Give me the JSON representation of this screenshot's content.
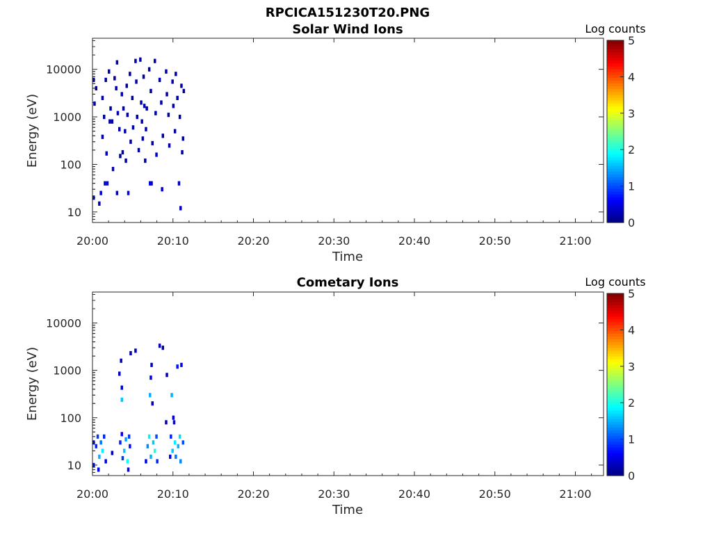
{
  "figure": {
    "title": "RPCICA151230T20.PNG"
  },
  "colormap": [
    "#00007f",
    "#0000ff",
    "#007fff",
    "#00ffff",
    "#7fff7f",
    "#ffff00",
    "#ff7f00",
    "#ff0000",
    "#7f0000"
  ],
  "chart_data": [
    {
      "type": "heatmap",
      "title": "Solar Wind Ions",
      "xlabel": "Time",
      "ylabel": "Energy (eV)",
      "x_ticks": [
        "20:00",
        "20:10",
        "20:20",
        "20:30",
        "20:40",
        "20:50",
        "21:00"
      ],
      "x_range_minutes": [
        0,
        63.5
      ],
      "y_ticks": [
        "10",
        "100",
        "1000",
        "10000"
      ],
      "y_scale": "log",
      "y_range": [
        6,
        45000
      ],
      "colorbar": {
        "label": "Log counts",
        "range": [
          0,
          5
        ],
        "ticks": [
          "0",
          "1",
          "2",
          "3",
          "4",
          "5"
        ]
      },
      "cells": [
        {
          "t": 0.0,
          "e": 6000,
          "c": 0.2
        },
        {
          "t": 0.1,
          "e": 1900,
          "c": 0.2
        },
        {
          "t": 0.3,
          "e": 4000,
          "c": 0.2
        },
        {
          "t": 0.0,
          "e": 20,
          "c": 0.3
        },
        {
          "t": 0.7,
          "e": 15,
          "c": 0.3
        },
        {
          "t": 1.1,
          "e": 2500,
          "c": 0.2
        },
        {
          "t": 1.3,
          "e": 1000,
          "c": 0.2
        },
        {
          "t": 1.1,
          "e": 380,
          "c": 0.2
        },
        {
          "t": 0.9,
          "e": 25,
          "c": 0.4
        },
        {
          "t": 1.5,
          "e": 6000,
          "c": 0.2
        },
        {
          "t": 1.7,
          "e": 40,
          "c": 0.5
        },
        {
          "t": 1.4,
          "e": 40,
          "c": 0.4
        },
        {
          "t": 1.9,
          "e": 9000,
          "c": 0.2
        },
        {
          "t": 1.6,
          "e": 170,
          "c": 0.3
        },
        {
          "t": 2.1,
          "e": 1500,
          "c": 0.2
        },
        {
          "t": 2.0,
          "e": 800,
          "c": 0.2
        },
        {
          "t": 2.3,
          "e": 800,
          "c": 0.2
        },
        {
          "t": 2.4,
          "e": 80,
          "c": 0.4
        },
        {
          "t": 2.6,
          "e": 6500,
          "c": 0.2
        },
        {
          "t": 2.8,
          "e": 4000,
          "c": 0.2
        },
        {
          "t": 2.9,
          "e": 14000,
          "c": 0.2
        },
        {
          "t": 3.0,
          "e": 1200,
          "c": 0.2
        },
        {
          "t": 3.2,
          "e": 550,
          "c": 0.2
        },
        {
          "t": 2.9,
          "e": 25,
          "c": 0.4
        },
        {
          "t": 3.5,
          "e": 3000,
          "c": 0.2
        },
        {
          "t": 3.3,
          "e": 150,
          "c": 0.2
        },
        {
          "t": 3.6,
          "e": 180,
          "c": 0.2
        },
        {
          "t": 3.7,
          "e": 1500,
          "c": 0.2
        },
        {
          "t": 3.9,
          "e": 500,
          "c": 0.2
        },
        {
          "t": 4.1,
          "e": 4500,
          "c": 0.2
        },
        {
          "t": 4.2,
          "e": 1100,
          "c": 0.2
        },
        {
          "t": 4.0,
          "e": 120,
          "c": 0.2
        },
        {
          "t": 4.5,
          "e": 8000,
          "c": 0.2
        },
        {
          "t": 4.6,
          "e": 300,
          "c": 0.2
        },
        {
          "t": 4.8,
          "e": 2500,
          "c": 0.2
        },
        {
          "t": 4.9,
          "e": 600,
          "c": 0.2
        },
        {
          "t": 4.3,
          "e": 25,
          "c": 0.5
        },
        {
          "t": 5.2,
          "e": 15000,
          "c": 0.2
        },
        {
          "t": 5.3,
          "e": 5500,
          "c": 0.2
        },
        {
          "t": 5.4,
          "e": 1000,
          "c": 0.2
        },
        {
          "t": 5.6,
          "e": 200,
          "c": 0.2
        },
        {
          "t": 5.8,
          "e": 16000,
          "c": 0.2
        },
        {
          "t": 5.9,
          "e": 2000,
          "c": 0.2
        },
        {
          "t": 6.0,
          "e": 800,
          "c": 0.2
        },
        {
          "t": 6.1,
          "e": 350,
          "c": 0.2
        },
        {
          "t": 6.2,
          "e": 7000,
          "c": 0.2
        },
        {
          "t": 6.3,
          "e": 1700,
          "c": 0.2
        },
        {
          "t": 6.4,
          "e": 120,
          "c": 0.2
        },
        {
          "t": 6.5,
          "e": 550,
          "c": 0.2
        },
        {
          "t": 6.6,
          "e": 1500,
          "c": 0.2
        },
        {
          "t": 6.9,
          "e": 10000,
          "c": 0.2
        },
        {
          "t": 7.0,
          "e": 40,
          "c": 0.5
        },
        {
          "t": 7.2,
          "e": 40,
          "c": 0.4
        },
        {
          "t": 7.1,
          "e": 3500,
          "c": 0.2
        },
        {
          "t": 7.3,
          "e": 280,
          "c": 0.2
        },
        {
          "t": 7.6,
          "e": 15000,
          "c": 0.2
        },
        {
          "t": 7.7,
          "e": 1200,
          "c": 0.2
        },
        {
          "t": 7.8,
          "e": 160,
          "c": 0.4
        },
        {
          "t": 8.2,
          "e": 6000,
          "c": 0.2
        },
        {
          "t": 8.4,
          "e": 2000,
          "c": 0.2
        },
        {
          "t": 8.5,
          "e": 30,
          "c": 0.4
        },
        {
          "t": 8.6,
          "e": 400,
          "c": 0.2
        },
        {
          "t": 9.0,
          "e": 9000,
          "c": 0.2
        },
        {
          "t": 9.1,
          "e": 3000,
          "c": 0.2
        },
        {
          "t": 9.3,
          "e": 1100,
          "c": 0.2
        },
        {
          "t": 9.4,
          "e": 250,
          "c": 0.2
        },
        {
          "t": 9.8,
          "e": 5500,
          "c": 0.2
        },
        {
          "t": 9.9,
          "e": 1700,
          "c": 0.2
        },
        {
          "t": 10.1,
          "e": 500,
          "c": 0.2
        },
        {
          "t": 10.2,
          "e": 8000,
          "c": 0.2
        },
        {
          "t": 10.4,
          "e": 2500,
          "c": 0.2
        },
        {
          "t": 10.6,
          "e": 40,
          "c": 0.3
        },
        {
          "t": 10.7,
          "e": 1000,
          "c": 0.2
        },
        {
          "t": 10.9,
          "e": 4500,
          "c": 0.2
        },
        {
          "t": 11.1,
          "e": 350,
          "c": 0.2
        },
        {
          "t": 11.2,
          "e": 3500,
          "c": 0.2
        },
        {
          "t": 11.0,
          "e": 180,
          "c": 0.2
        },
        {
          "t": 10.8,
          "e": 12,
          "c": 0.3
        }
      ]
    },
    {
      "type": "heatmap",
      "title": "Cometary Ions",
      "xlabel": "Time",
      "ylabel": "Energy (eV)",
      "x_ticks": [
        "20:00",
        "20:10",
        "20:20",
        "20:30",
        "20:40",
        "20:50",
        "21:00"
      ],
      "x_range_minutes": [
        0,
        63.5
      ],
      "y_ticks": [
        "10",
        "100",
        "1000",
        "10000"
      ],
      "y_scale": "log",
      "y_range": [
        6,
        45000
      ],
      "colorbar": {
        "label": "Log counts",
        "range": [
          0,
          5
        ],
        "ticks": [
          "0",
          "1",
          "2",
          "3",
          "4",
          "5"
        ]
      },
      "cells": [
        {
          "t": 0.0,
          "e": 10,
          "c": 0.6
        },
        {
          "t": 0.0,
          "e": 30,
          "c": 0.5
        },
        {
          "t": 0.3,
          "e": 25,
          "c": 0.8
        },
        {
          "t": 0.5,
          "e": 40,
          "c": 0.9
        },
        {
          "t": 0.7,
          "e": 15,
          "c": 1.5
        },
        {
          "t": 0.9,
          "e": 30,
          "c": 1.2
        },
        {
          "t": 1.1,
          "e": 20,
          "c": 1.8
        },
        {
          "t": 1.3,
          "e": 40,
          "c": 0.8
        },
        {
          "t": 1.5,
          "e": 12,
          "c": 0.6
        },
        {
          "t": 0.6,
          "e": 8,
          "c": 0.5
        },
        {
          "t": 2.3,
          "e": 18,
          "c": 0.3
        },
        {
          "t": 3.2,
          "e": 850,
          "c": 0.3
        },
        {
          "t": 3.4,
          "e": 1600,
          "c": 0.3
        },
        {
          "t": 3.5,
          "e": 430,
          "c": 0.4
        },
        {
          "t": 3.5,
          "e": 240,
          "c": 1.6
        },
        {
          "t": 3.3,
          "e": 30,
          "c": 0.8
        },
        {
          "t": 3.5,
          "e": 45,
          "c": 0.6
        },
        {
          "t": 3.6,
          "e": 14,
          "c": 0.9
        },
        {
          "t": 3.8,
          "e": 20,
          "c": 1.6
        },
        {
          "t": 4.0,
          "e": 35,
          "c": 1.4
        },
        {
          "t": 4.2,
          "e": 12,
          "c": 1.9
        },
        {
          "t": 4.4,
          "e": 40,
          "c": 0.9
        },
        {
          "t": 4.5,
          "e": 25,
          "c": 0.7
        },
        {
          "t": 4.3,
          "e": 8,
          "c": 0.6
        },
        {
          "t": 4.6,
          "e": 2300,
          "c": 0.3
        },
        {
          "t": 5.2,
          "e": 2600,
          "c": 0.3
        },
        {
          "t": 6.5,
          "e": 12,
          "c": 0.5
        },
        {
          "t": 6.7,
          "e": 25,
          "c": 1.3
        },
        {
          "t": 6.9,
          "e": 40,
          "c": 1.8
        },
        {
          "t": 7.1,
          "e": 15,
          "c": 1.5
        },
        {
          "t": 7.0,
          "e": 300,
          "c": 1.5
        },
        {
          "t": 7.1,
          "e": 700,
          "c": 0.5
        },
        {
          "t": 7.2,
          "e": 1300,
          "c": 0.3
        },
        {
          "t": 7.3,
          "e": 200,
          "c": 0.3
        },
        {
          "t": 7.4,
          "e": 30,
          "c": 1.6
        },
        {
          "t": 7.6,
          "e": 20,
          "c": 2.0
        },
        {
          "t": 7.8,
          "e": 40,
          "c": 1.0
        },
        {
          "t": 7.9,
          "e": 12,
          "c": 0.8
        },
        {
          "t": 8.2,
          "e": 3300,
          "c": 0.3
        },
        {
          "t": 8.6,
          "e": 3000,
          "c": 0.3
        },
        {
          "t": 9.0,
          "e": 80,
          "c": 0.3
        },
        {
          "t": 9.1,
          "e": 800,
          "c": 0.3
        },
        {
          "t": 9.6,
          "e": 40,
          "c": 0.8
        },
        {
          "t": 9.7,
          "e": 300,
          "c": 1.5
        },
        {
          "t": 9.8,
          "e": 20,
          "c": 1.6
        },
        {
          "t": 10.0,
          "e": 80,
          "c": 0.6
        },
        {
          "t": 10.1,
          "e": 30,
          "c": 1.8
        },
        {
          "t": 10.2,
          "e": 15,
          "c": 1.2
        },
        {
          "t": 10.4,
          "e": 1200,
          "c": 0.7
        },
        {
          "t": 10.5,
          "e": 25,
          "c": 1.5
        },
        {
          "t": 10.7,
          "e": 40,
          "c": 1.7
        },
        {
          "t": 10.8,
          "e": 12,
          "c": 1.3
        },
        {
          "t": 10.9,
          "e": 1300,
          "c": 0.5
        },
        {
          "t": 11.1,
          "e": 30,
          "c": 1.0
        },
        {
          "t": 9.9,
          "e": 100,
          "c": 0.4
        },
        {
          "t": 9.5,
          "e": 15,
          "c": 0.6
        }
      ]
    }
  ]
}
